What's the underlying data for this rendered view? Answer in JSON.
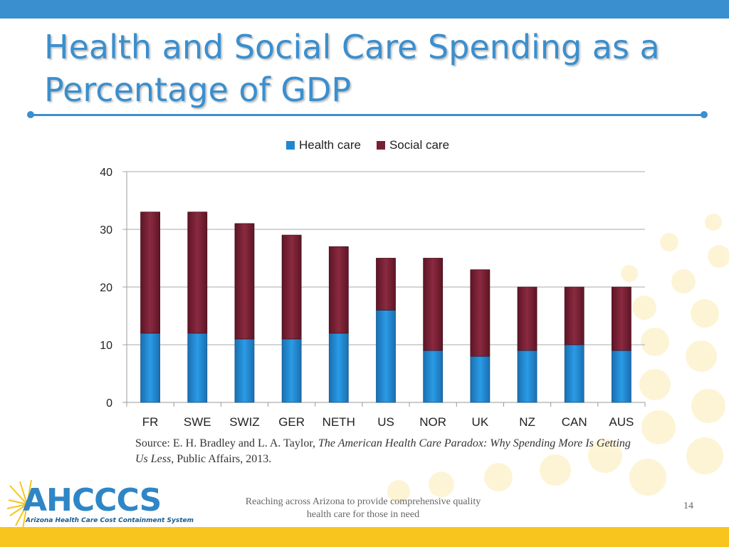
{
  "slide": {
    "title": "Health and Social Care Spending as a Percentage of GDP",
    "source_prefix": "Source: E. H. Bradley and L. A. Taylor, ",
    "source_book": "The American Health Care Paradox: Why Spending More Is Getting Us Less",
    "source_suffix": ", Public Affairs, 2013.",
    "footer_text": "Reaching across Arizona to provide comprehensive quality health care for those in need",
    "page_number": "14",
    "logo_text": "AHCCCS",
    "logo_subtitle": "Arizona Health Care Cost Containment System"
  },
  "colors": {
    "accent": "#3a8fce",
    "health": "#1f86d2",
    "social": "#7a1f33",
    "footer_bar": "#f7c51e"
  },
  "chart_data": {
    "type": "bar",
    "stacked": true,
    "title": "",
    "xlabel": "",
    "ylabel": "",
    "ylim": [
      0,
      40
    ],
    "yticks": [
      0,
      10,
      20,
      30,
      40
    ],
    "grid": true,
    "legend_position": "top-center",
    "categories": [
      "FR",
      "SWE",
      "SWIZ",
      "GER",
      "NETH",
      "US",
      "NOR",
      "UK",
      "NZ",
      "CAN",
      "AUS"
    ],
    "series": [
      {
        "name": "Health care",
        "values": [
          12,
          12,
          11,
          11,
          12,
          16,
          9,
          8,
          9,
          10,
          9
        ]
      },
      {
        "name": "Social care",
        "values": [
          21,
          21,
          20,
          18,
          15,
          9,
          16,
          15,
          11,
          10,
          11
        ]
      }
    ]
  }
}
